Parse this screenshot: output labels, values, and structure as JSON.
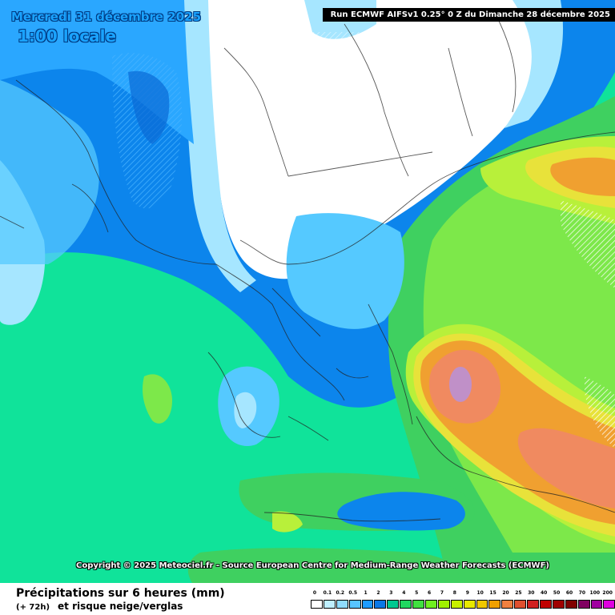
{
  "header": {
    "date": "Mercredi 31 décembre 2025",
    "time": "1:00 locale",
    "run": "Run ECMWF AIFSv1 0.25° 0 Z du Dimanche 28 décembre 2025"
  },
  "copyright": "Copyright © 2025 Meteociel.fr - Source European Centre for Medium-Range Weather Forecasts (ECMWF)",
  "footer": {
    "title": "Précipitations sur 6 heures (mm)",
    "step": "(+ 72h)",
    "subtitle": "et risque neige/verglas"
  },
  "legend": {
    "labels": [
      "0",
      "0.1",
      "0.2",
      "0.5",
      "1",
      "2",
      "3",
      "4",
      "5",
      "6",
      "7",
      "8",
      "9",
      "10",
      "15",
      "20",
      "25",
      "30",
      "40",
      "50",
      "60",
      "70",
      "100",
      "200"
    ],
    "colors": [
      "#ffffff",
      "#bfefff",
      "#8fdcff",
      "#58c4ff",
      "#1e9cff",
      "#0a78e6",
      "#00c890",
      "#20d860",
      "#40e040",
      "#70f020",
      "#a0f000",
      "#c8f000",
      "#e8e800",
      "#f0c800",
      "#f0a000",
      "#f08040",
      "#e05030",
      "#d02020",
      "#c00000",
      "#a00000",
      "#800000",
      "#800060",
      "#a000a0",
      "#e000e0"
    ]
  },
  "colors": {
    "land_dry": "#ffffff",
    "very_light": "#a6e6ff",
    "light_blue": "#55c9ff",
    "mid_blue": "#2aa7ff",
    "blue": "#0c85ec",
    "deep_blue": "#0a6ad6",
    "teal": "#10e39a",
    "green": "#3fd060",
    "light_green": "#7de84a",
    "lime": "#b8f03a",
    "yellow": "#e8e23a",
    "orange": "#f0a030",
    "salmon": "#f08a60",
    "lilac": "#c090c8"
  }
}
